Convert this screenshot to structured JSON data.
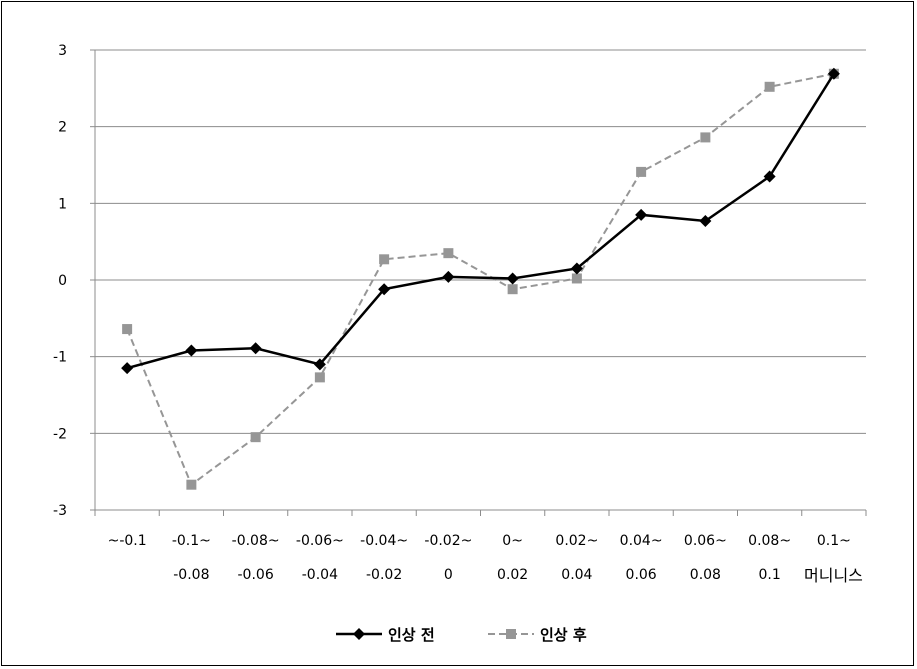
{
  "chart_data": {
    "type": "line",
    "categories": [
      [
        "~-0.1",
        ""
      ],
      [
        "-0.1~",
        "-0.08"
      ],
      [
        "-0.08~",
        "-0.06"
      ],
      [
        "-0.06~",
        "-0.04"
      ],
      [
        "-0.04~",
        "-0.02"
      ],
      [
        "-0.02~",
        "0"
      ],
      [
        "0~",
        "0.02"
      ],
      [
        "0.02~",
        "0.04"
      ],
      [
        "0.04~",
        "0.06"
      ],
      [
        "0.06~",
        "0.08"
      ],
      [
        "0.08~",
        "0.1"
      ],
      [
        "0.1~",
        ""
      ]
    ],
    "series": [
      {
        "name": "인상 전",
        "color": "#000000",
        "dash": false,
        "marker": "diamond",
        "values": [
          -1.15,
          -0.92,
          -0.89,
          -1.1,
          -0.12,
          0.04,
          0.02,
          0.15,
          0.85,
          0.77,
          1.35,
          2.69
        ]
      },
      {
        "name": "인상 후",
        "color": "#969696",
        "dash": true,
        "marker": "square",
        "values": [
          -0.64,
          -2.67,
          -2.05,
          -1.27,
          0.27,
          0.35,
          -0.12,
          0.02,
          1.41,
          1.86,
          2.52,
          2.69
        ]
      }
    ],
    "xlabel": "머니니스",
    "ylim": [
      -3,
      3
    ],
    "yticks": [
      3,
      2,
      1,
      0,
      -1,
      -2,
      -3
    ],
    "grid": true,
    "legend": "bottom"
  }
}
